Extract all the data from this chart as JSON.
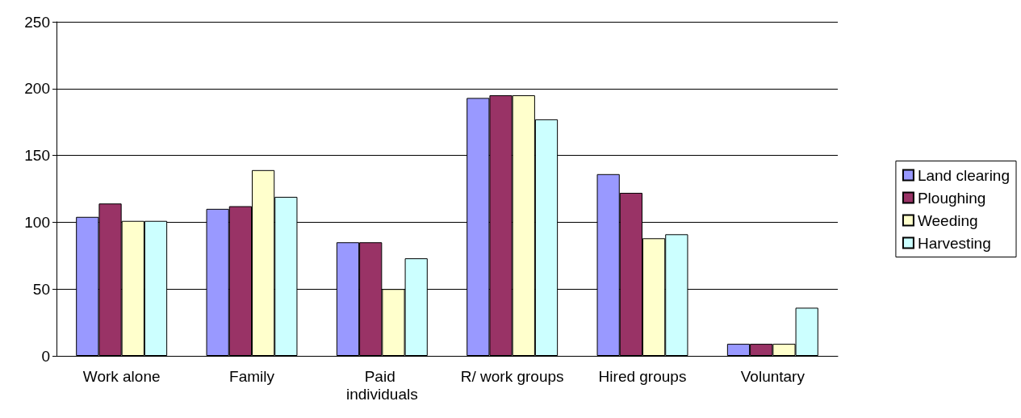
{
  "chart_data": {
    "type": "bar",
    "categories": [
      "Work alone",
      "Family",
      "Paid individuals",
      "R/ work groups",
      "Hired groups",
      "Voluntary"
    ],
    "series": [
      {
        "name": "Land clearing",
        "color": "#9999ff",
        "values": [
          104,
          110,
          85,
          193,
          136,
          9
        ]
      },
      {
        "name": "Ploughing",
        "color": "#993366",
        "values": [
          114,
          112,
          85,
          195,
          122,
          9
        ]
      },
      {
        "name": "Weeding",
        "color": "#ffffcc",
        "values": [
          101,
          139,
          50,
          195,
          88,
          9
        ]
      },
      {
        "name": "Harvesting",
        "color": "#ccffff",
        "values": [
          101,
          119,
          73,
          177,
          91,
          36
        ]
      }
    ],
    "ylim": [
      0,
      250
    ],
    "yticks": [
      0,
      50,
      100,
      150,
      200,
      250
    ],
    "grid": "y",
    "legend": "right"
  }
}
